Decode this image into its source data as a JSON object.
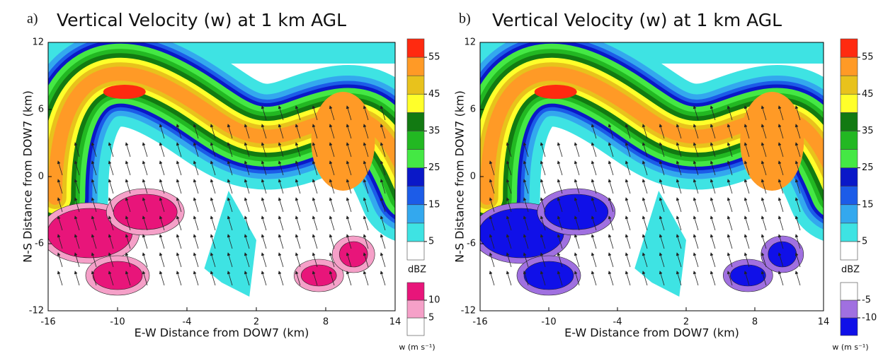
{
  "chart_data": [
    {
      "type": "contour",
      "panel_label": "a)",
      "title": "Vertical Velocity (w) at 1 km AGL",
      "x_label": "E-W Distance from DOW7 (km)",
      "y_label": "N-S Distance from DOW7 (km)",
      "xlim": [
        -16,
        14
      ],
      "ylim": [
        -12,
        12
      ],
      "xticks": [
        -16,
        -10,
        -4,
        2,
        8,
        14
      ],
      "yticks": [
        -12,
        -6,
        0,
        6,
        12
      ],
      "colorbars": [
        {
          "label": "dBZ",
          "lim": [
            0,
            60
          ],
          "ticks": [
            5,
            15,
            25,
            35,
            45,
            55
          ],
          "colors": [
            "#ffffff",
            "#3ee3e3",
            "#33a8ee",
            "#1c5ce8",
            "#0a18c8",
            "#44e844",
            "#22b822",
            "#127a12",
            "#ffff2a",
            "#e8c21c",
            "#ff9a26",
            "#ff2a10"
          ]
        },
        {
          "label": "w (m s⁻¹)",
          "lim": [
            0,
            15
          ],
          "ticks": [
            5,
            10
          ],
          "colors": [
            "#ffffff",
            "#f5a0c8",
            "#e8157a"
          ]
        }
      ]
    },
    {
      "type": "contour",
      "panel_label": "b)",
      "title": "Vertical Velocity (w) at 1 km AGL",
      "x_label": "E-W Distance from DOW7 (km)",
      "y_label": "N-S Distance from DOW7 (km)",
      "xlim": [
        -16,
        14
      ],
      "ylim": [
        -12,
        12
      ],
      "xticks": [
        -16,
        -10,
        -4,
        2,
        8,
        14
      ],
      "yticks": [
        -12,
        -6,
        0,
        6,
        12
      ],
      "colorbars": [
        {
          "label": "dBZ",
          "lim": [
            0,
            60
          ],
          "ticks": [
            5,
            15,
            25,
            35,
            45,
            55
          ],
          "colors": [
            "#ffffff",
            "#3ee3e3",
            "#33a8ee",
            "#1c5ce8",
            "#0a18c8",
            "#44e844",
            "#22b822",
            "#127a12",
            "#ffff2a",
            "#e8c21c",
            "#ff9a26",
            "#ff2a10"
          ]
        },
        {
          "label": "w (m s⁻¹)",
          "lim": [
            -15,
            0
          ],
          "ticks": [
            -10,
            -5
          ],
          "colors": [
            "#1010e8",
            "#a070e0",
            "#ffffff"
          ]
        }
      ]
    }
  ]
}
